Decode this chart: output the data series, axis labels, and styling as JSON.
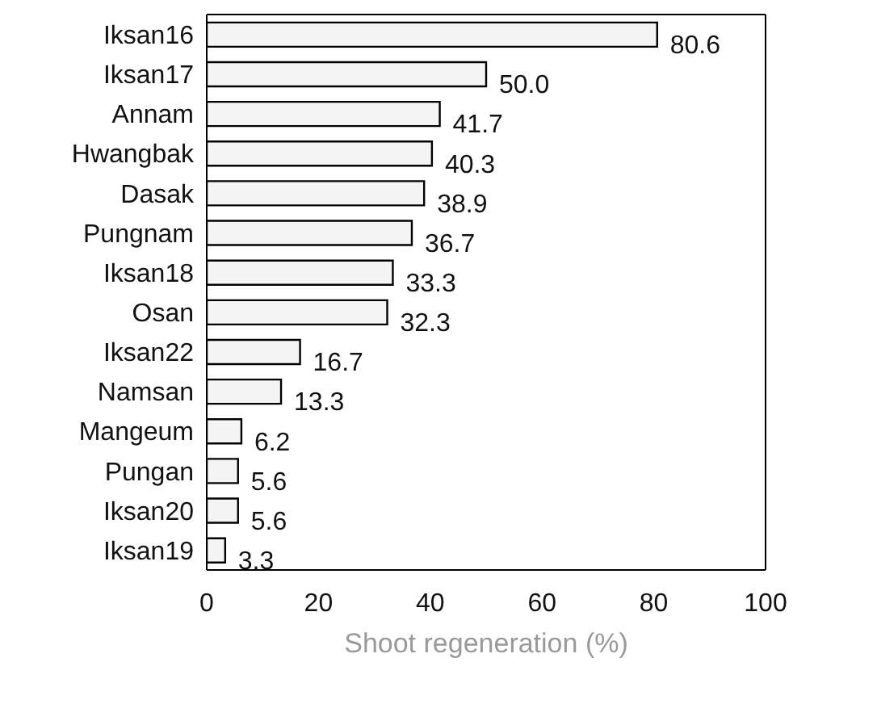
{
  "chart_data": {
    "type": "bar",
    "orientation": "horizontal",
    "xlabel": "Shoot regeneration (%)",
    "categories": [
      "Iksan16",
      "Iksan17",
      "Annam",
      "Hwangbak",
      "Dasak",
      "Pungnam",
      "Iksan18",
      "Osan",
      "Iksan22",
      "Namsan",
      "Mangeum",
      "Pungan",
      "Iksan20",
      "Iksan19"
    ],
    "values": [
      80.6,
      50.0,
      41.7,
      40.3,
      38.9,
      36.7,
      33.3,
      32.3,
      16.7,
      13.3,
      6.2,
      5.6,
      5.6,
      3.3
    ],
    "value_labels": [
      "80.6",
      "50.0",
      "41.7",
      "40.3",
      "38.9",
      "36.7",
      "33.3",
      "32.3",
      "16.7",
      "13.3",
      "6.2",
      "5.6",
      "5.6",
      "3.3"
    ],
    "color": "#f4f4f4",
    "xlim": [
      0,
      100
    ],
    "xticks": [
      0,
      20,
      40,
      60,
      80,
      100
    ]
  }
}
